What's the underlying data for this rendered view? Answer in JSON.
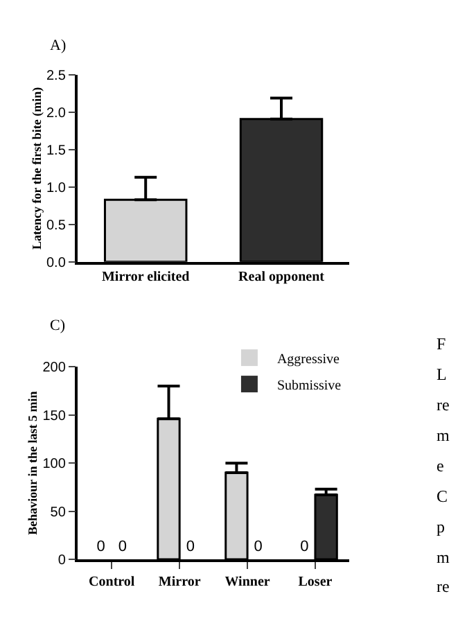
{
  "chart_data": [
    {
      "type": "bar",
      "title": "A)",
      "ylabel": "Latency for the first bite (min)",
      "categories": [
        "Mirror elicited",
        "Real opponent"
      ],
      "values": [
        0.83,
        1.91
      ],
      "colors": [
        "#d4d4d4",
        "#2e2e2e"
      ],
      "errors": [
        [
          0.83,
          1.13
        ],
        [
          1.91,
          2.19
        ]
      ],
      "ylim": [
        0,
        2.5
      ],
      "yticks": [
        {
          "value": 0,
          "label": "0.0"
        },
        {
          "value": 0.5,
          "label": "0.5"
        },
        {
          "value": 1,
          "label": "1.0"
        },
        {
          "value": 1.5,
          "label": "1.5"
        },
        {
          "value": 2,
          "label": "2.0"
        },
        {
          "value": 2.5,
          "label": "2.5"
        }
      ],
      "legend": false
    },
    {
      "type": "bar",
      "title": "C)",
      "ylabel": "Behaviour in the last 5 min",
      "categories": [
        "Control",
        "Mirror",
        "Winner",
        "Loser"
      ],
      "series": [
        {
          "name": "Aggressive",
          "color": "#d4d4d4",
          "values": [
            0,
            146,
            90,
            0
          ],
          "errors": [
            null,
            [
              146,
              180
            ],
            [
              90,
              100
            ],
            null
          ],
          "value_labels": [
            "0",
            null,
            null,
            "0"
          ]
        },
        {
          "name": "Submissive",
          "color": "#2e2e2e",
          "values": [
            0,
            0,
            0,
            67
          ],
          "errors": [
            null,
            null,
            null,
            [
              67,
              73
            ]
          ],
          "value_labels": [
            "0",
            "0",
            "0",
            null
          ]
        }
      ],
      "ylim": [
        0,
        200
      ],
      "yticks": [
        0,
        50,
        100,
        150,
        200
      ],
      "legend": "top right",
      "annotations": [
        "F",
        "L",
        "re",
        "m",
        "e",
        "C",
        "p",
        "m",
        "re"
      ]
    }
  ]
}
